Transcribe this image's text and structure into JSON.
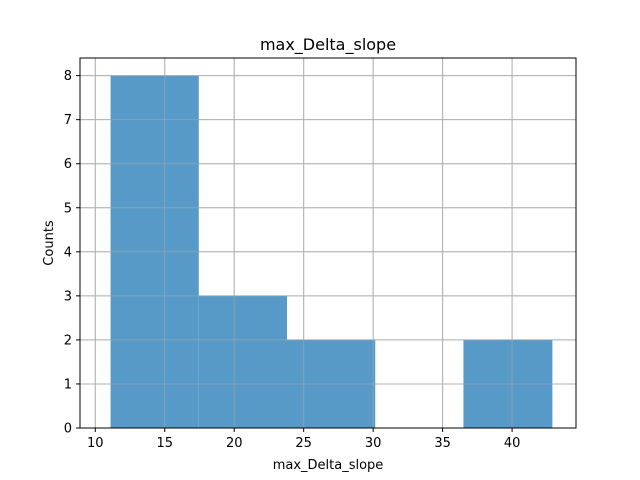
{
  "chart_data": {
    "type": "bar",
    "title": "max_Delta_slope",
    "xlabel": "max_Delta_slope",
    "ylabel": "Counts",
    "xlim": [
      8.9,
      44.6
    ],
    "ylim": [
      0,
      8.4
    ],
    "xticks": [
      "10",
      "15",
      "20",
      "25",
      "30",
      "35",
      "40"
    ],
    "yticks": [
      "0",
      "1",
      "2",
      "3",
      "4",
      "5",
      "6",
      "7",
      "8"
    ],
    "grid": true,
    "bar_color": "#5799c7",
    "bins": [
      {
        "x0": 11.1,
        "x1": 17.45,
        "value": 8
      },
      {
        "x0": 17.45,
        "x1": 23.8,
        "value": 3
      },
      {
        "x0": 23.8,
        "x1": 30.15,
        "value": 2
      },
      {
        "x0": 30.15,
        "x1": 36.5,
        "value": 0
      },
      {
        "x0": 36.5,
        "x1": 42.9,
        "value": 2
      }
    ]
  }
}
